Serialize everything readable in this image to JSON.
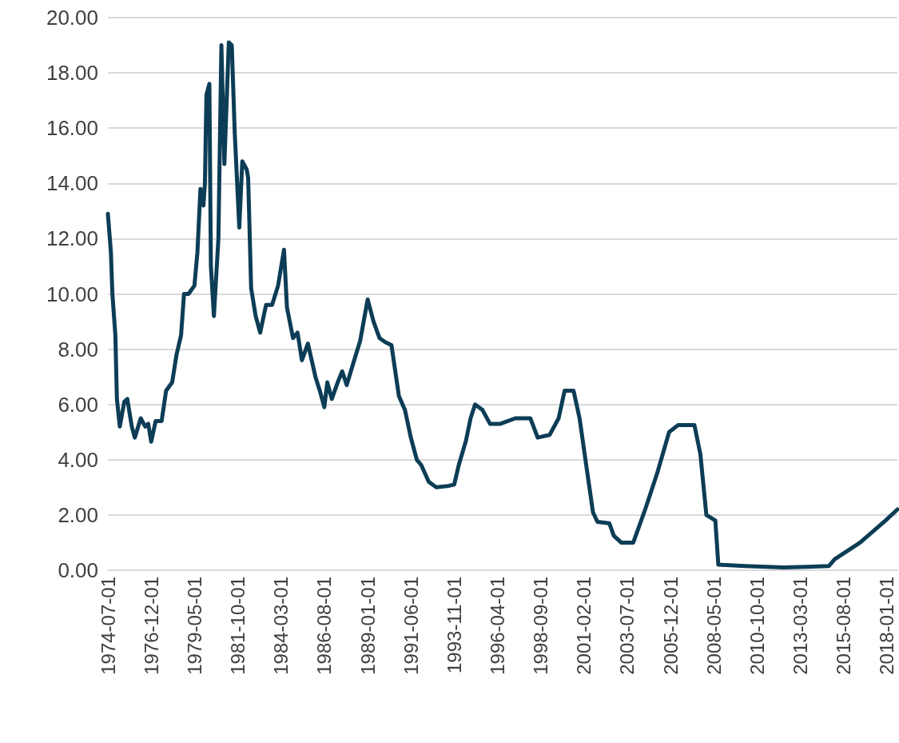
{
  "chart_data": {
    "type": "line",
    "x": [
      "1974-07",
      "1974-09",
      "1974-10",
      "1974-12",
      "1975-01",
      "1975-03",
      "1975-06",
      "1975-08",
      "1975-11",
      "1976-01",
      "1976-05",
      "1976-08",
      "1976-10",
      "1976-12",
      "1977-03",
      "1977-07",
      "1977-10",
      "1978-02",
      "1978-05",
      "1978-08",
      "1978-10",
      "1979-01",
      "1979-05",
      "1979-07",
      "1979-09",
      "1979-11",
      "1979-12",
      "1980-01",
      "1980-03",
      "1980-04",
      "1980-06",
      "1980-09",
      "1980-11",
      "1981-01",
      "1981-04",
      "1981-06",
      "1981-08",
      "1981-11",
      "1982-01",
      "1982-04",
      "1982-05",
      "1982-07",
      "1982-10",
      "1983-01",
      "1983-05",
      "1983-09",
      "1984-01",
      "1984-05",
      "1984-07",
      "1984-11",
      "1985-02",
      "1985-05",
      "1985-09",
      "1986-02",
      "1986-05",
      "1986-08",
      "1986-10",
      "1987-01",
      "1987-05",
      "1987-08",
      "1987-11",
      "1988-04",
      "1988-08",
      "1989-01",
      "1989-05",
      "1989-09",
      "1990-01",
      "1990-05",
      "1990-10",
      "1991-02",
      "1991-06",
      "1991-10",
      "1992-01",
      "1992-06",
      "1992-11",
      "1993-07",
      "1993-11",
      "1994-02",
      "1994-07",
      "1994-10",
      "1995-01",
      "1995-06",
      "1995-11",
      "1996-06",
      "1997-04",
      "1998-02",
      "1998-07",
      "1999-03",
      "1999-09",
      "2000-01",
      "2000-07",
      "2000-11",
      "2001-03",
      "2001-08",
      "2001-11",
      "2002-07",
      "2002-10",
      "2003-03",
      "2003-11",
      "2004-07",
      "2005-03",
      "2005-11",
      "2006-05",
      "2007-04",
      "2007-08",
      "2007-12",
      "2008-06",
      "2008-08",
      "2010-02",
      "2012-04",
      "2014-10",
      "2015-02",
      "2016-07",
      "2017-12",
      "2018-08"
    ],
    "series": [
      {
        "color": "#0d3d56",
        "values": [
          12.9,
          11.5,
          10.0,
          8.5,
          6.2,
          5.2,
          6.1,
          6.2,
          5.2,
          4.8,
          5.5,
          5.2,
          5.3,
          4.65,
          5.4,
          5.4,
          6.5,
          6.8,
          7.8,
          8.5,
          10.0,
          10.0,
          10.3,
          11.5,
          13.8,
          13.2,
          14.0,
          17.2,
          17.6,
          11.0,
          9.2,
          12.0,
          19.0,
          14.7,
          19.1,
          19.0,
          15.8,
          12.4,
          14.8,
          14.5,
          14.2,
          10.2,
          9.2,
          8.6,
          9.6,
          9.6,
          10.3,
          11.6,
          9.5,
          8.4,
          8.6,
          7.6,
          8.2,
          7.0,
          6.5,
          5.9,
          6.8,
          6.2,
          6.8,
          7.2,
          6.7,
          7.6,
          8.3,
          9.8,
          9.0,
          8.4,
          8.25,
          8.15,
          6.3,
          5.8,
          4.8,
          4.0,
          3.8,
          3.2,
          3.0,
          3.05,
          3.1,
          3.8,
          4.7,
          5.5,
          6.0,
          5.8,
          5.3,
          5.3,
          5.5,
          5.5,
          4.8,
          4.9,
          5.5,
          6.5,
          6.5,
          5.5,
          4.0,
          2.1,
          1.75,
          1.7,
          1.25,
          1.0,
          1.0,
          2.2,
          3.5,
          5.0,
          5.25,
          5.25,
          4.2,
          2.0,
          1.8,
          0.2,
          0.15,
          0.1,
          0.15,
          0.4,
          1.0,
          1.8,
          2.2
        ]
      }
    ],
    "xlim": [
      "1974-07-01",
      "2018-08-01"
    ],
    "xticks": [
      "1974-07-01",
      "1976-12-01",
      "1979-05-01",
      "1981-10-01",
      "1984-03-01",
      "1986-08-01",
      "1989-01-01",
      "1991-06-01",
      "1993-11-01",
      "1996-04-01",
      "1998-09-01",
      "2001-02-01",
      "2003-07-01",
      "2005-12-01",
      "2008-05-01",
      "2010-10-01",
      "2013-03-01",
      "2015-08-01",
      "2018-01-01"
    ],
    "ylim": [
      0,
      20
    ],
    "yticks": [
      {
        "value": 0,
        "label": "0.00"
      },
      {
        "value": 2,
        "label": "2.00"
      },
      {
        "value": 4,
        "label": "4.00"
      },
      {
        "value": 6,
        "label": "6.00"
      },
      {
        "value": 8,
        "label": "8.00"
      },
      {
        "value": 10,
        "label": "10.00"
      },
      {
        "value": 12,
        "label": "12.00"
      },
      {
        "value": 14,
        "label": "14.00"
      },
      {
        "value": 16,
        "label": "16.00"
      },
      {
        "value": 18,
        "label": "18.00"
      },
      {
        "value": 20,
        "label": "20.00"
      }
    ],
    "grid": "y",
    "marker": "none",
    "line_style": "solid"
  }
}
